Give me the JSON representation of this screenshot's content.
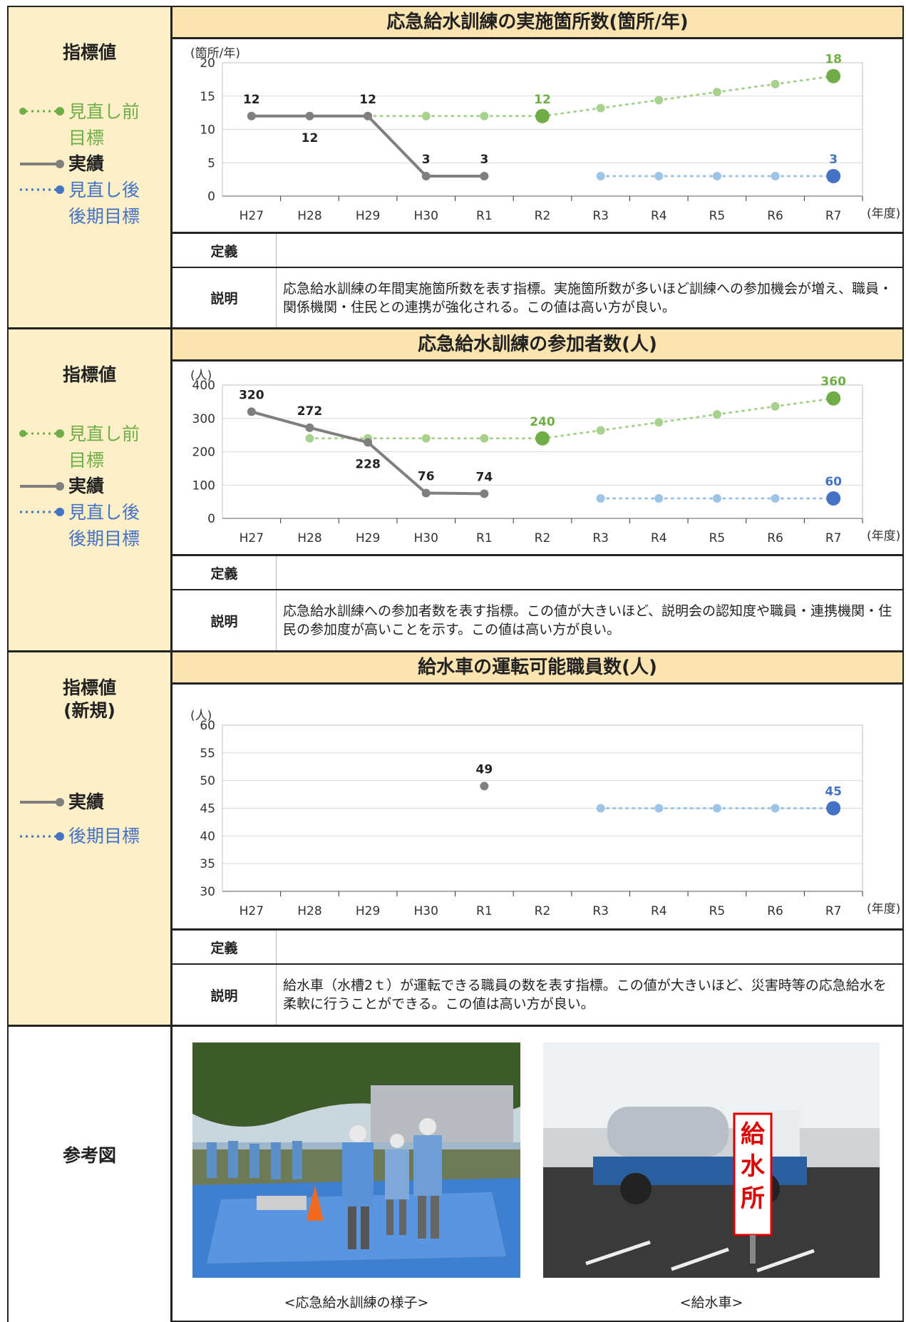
{
  "legend_labels": {
    "before": "見直し前\n目標",
    "actual": "実績",
    "after": "見直し後\n後期目標",
    "target": "後期目標"
  },
  "colors": {
    "green": "#70ad47",
    "gray": "#7f7f7f",
    "blue": "#4472c4",
    "lightblue": "#9dc3e6",
    "side_bg": "#fdf0c9",
    "title_bg": "#fbe4b0"
  },
  "sections": [
    {
      "side_label": "指標値",
      "title": "応急給水訓練の実施箇所数(箇所/年)",
      "definition_label": "定義",
      "definition": "",
      "description_label": "説明",
      "description": "応急給水訓練の年間実施箇所数を表す指標。実施箇所数が多いほど訓練への参加機会が増え、職員・関係機関・住民との連携が強化される。この値は高い方が良い。"
    },
    {
      "side_label": "指標値",
      "title": "応急給水訓練の参加者数(人)",
      "definition_label": "定義",
      "definition": "",
      "description_label": "説明",
      "description": "応急給水訓練への参加者数を表す指標。この値が大きいほど、説明会の認知度や職員・連携機関・住民の参加度が高いことを示す。この値は高い方が良い。"
    },
    {
      "side_label": "指標値\n(新規)",
      "title": "給水車の運転可能職員数(人)",
      "definition_label": "定義",
      "definition": "",
      "description_label": "説明",
      "description": "給水車（水槽2ｔ）が運転できる職員の数を表す指標。この値が大きいほど、災害時等の応急給水を柔軟に行うことができる。この値は高い方が良い。"
    }
  ],
  "reference": {
    "label": "参考図",
    "photo1_caption": "<応急給水訓練の様子>",
    "photo2_caption": "<給水車>",
    "sign_text": "給水所"
  },
  "chart_data": [
    {
      "type": "line",
      "title": "応急給水訓練の実施箇所数(箇所/年)",
      "ylabel": "(箇所/年)",
      "xlabel": "(年度)",
      "ylim": [
        0,
        20
      ],
      "yticks": [
        0,
        5,
        10,
        15,
        20
      ],
      "categories": [
        "H27",
        "H28",
        "H29",
        "H30",
        "R1",
        "R2",
        "R3",
        "R4",
        "R5",
        "R6",
        "R7"
      ],
      "grid": true,
      "series": [
        {
          "name": "見直し前目標",
          "color": "#70ad47",
          "style": "dotted",
          "values": [
            null,
            null,
            12,
            12,
            12,
            12,
            13.2,
            14.4,
            15.6,
            16.8,
            18
          ],
          "labels": {
            "5": "12",
            "10": "18"
          },
          "big": [
            5,
            10
          ]
        },
        {
          "name": "実績",
          "color": "#7f7f7f",
          "style": "solid",
          "values": [
            12,
            12,
            12,
            3,
            3,
            null,
            null,
            null,
            null,
            null,
            null
          ],
          "labels": {
            "0": "12",
            "1": "12",
            "2": "12",
            "3": "3",
            "4": "3"
          },
          "label_pos": {
            "0": "above",
            "1": "below",
            "2": "above",
            "3": "above",
            "4": "above"
          }
        },
        {
          "name": "見直し後後期目標",
          "color": "#4472c4",
          "style": "dotted",
          "values": [
            null,
            null,
            null,
            null,
            null,
            null,
            3,
            3,
            3,
            3,
            3
          ],
          "labels": {
            "10": "3"
          },
          "big": [
            10
          ]
        }
      ]
    },
    {
      "type": "line",
      "title": "応急給水訓練の参加者数(人)",
      "ylabel": "(人)",
      "xlabel": "(年度)",
      "ylim": [
        0,
        400
      ],
      "yticks": [
        0,
        100,
        200,
        300,
        400
      ],
      "categories": [
        "H27",
        "H28",
        "H29",
        "H30",
        "R1",
        "R2",
        "R3",
        "R4",
        "R5",
        "R6",
        "R7"
      ],
      "grid": true,
      "series": [
        {
          "name": "見直し前目標",
          "color": "#70ad47",
          "style": "dotted",
          "values": [
            null,
            240,
            240,
            240,
            240,
            240,
            264,
            288,
            312,
            336,
            360
          ],
          "labels": {
            "5": "240",
            "10": "360"
          },
          "big": [
            5,
            10
          ]
        },
        {
          "name": "実績",
          "color": "#7f7f7f",
          "style": "solid",
          "values": [
            320,
            272,
            228,
            76,
            74,
            null,
            null,
            null,
            null,
            null,
            null
          ],
          "labels": {
            "0": "320",
            "1": "272",
            "2": "228",
            "3": "76",
            "4": "74"
          },
          "label_pos": {
            "0": "above",
            "1": "above",
            "2": "below",
            "3": "above",
            "4": "above"
          }
        },
        {
          "name": "見直し後後期目標",
          "color": "#4472c4",
          "style": "dotted",
          "values": [
            null,
            null,
            null,
            null,
            null,
            null,
            60,
            60,
            60,
            60,
            60
          ],
          "labels": {
            "10": "60"
          },
          "big": [
            10
          ]
        }
      ]
    },
    {
      "type": "line",
      "title": "給水車の運転可能職員数(人)",
      "ylabel": "(人)",
      "xlabel": "(年度)",
      "ylim": [
        30,
        60
      ],
      "yticks": [
        30,
        35,
        40,
        45,
        50,
        55,
        60
      ],
      "categories": [
        "H27",
        "H28",
        "H29",
        "H30",
        "R1",
        "R2",
        "R3",
        "R4",
        "R5",
        "R6",
        "R7"
      ],
      "grid": true,
      "series": [
        {
          "name": "実績",
          "color": "#7f7f7f",
          "style": "solid",
          "values": [
            null,
            null,
            null,
            null,
            49,
            null,
            null,
            null,
            null,
            null,
            null
          ],
          "labels": {
            "4": "49"
          },
          "label_pos": {
            "4": "above"
          }
        },
        {
          "name": "後期目標",
          "color": "#4472c4",
          "style": "dotted",
          "values": [
            null,
            null,
            null,
            null,
            null,
            null,
            45,
            45,
            45,
            45,
            45
          ],
          "labels": {
            "10": "45"
          },
          "big": [
            10
          ]
        }
      ]
    }
  ]
}
